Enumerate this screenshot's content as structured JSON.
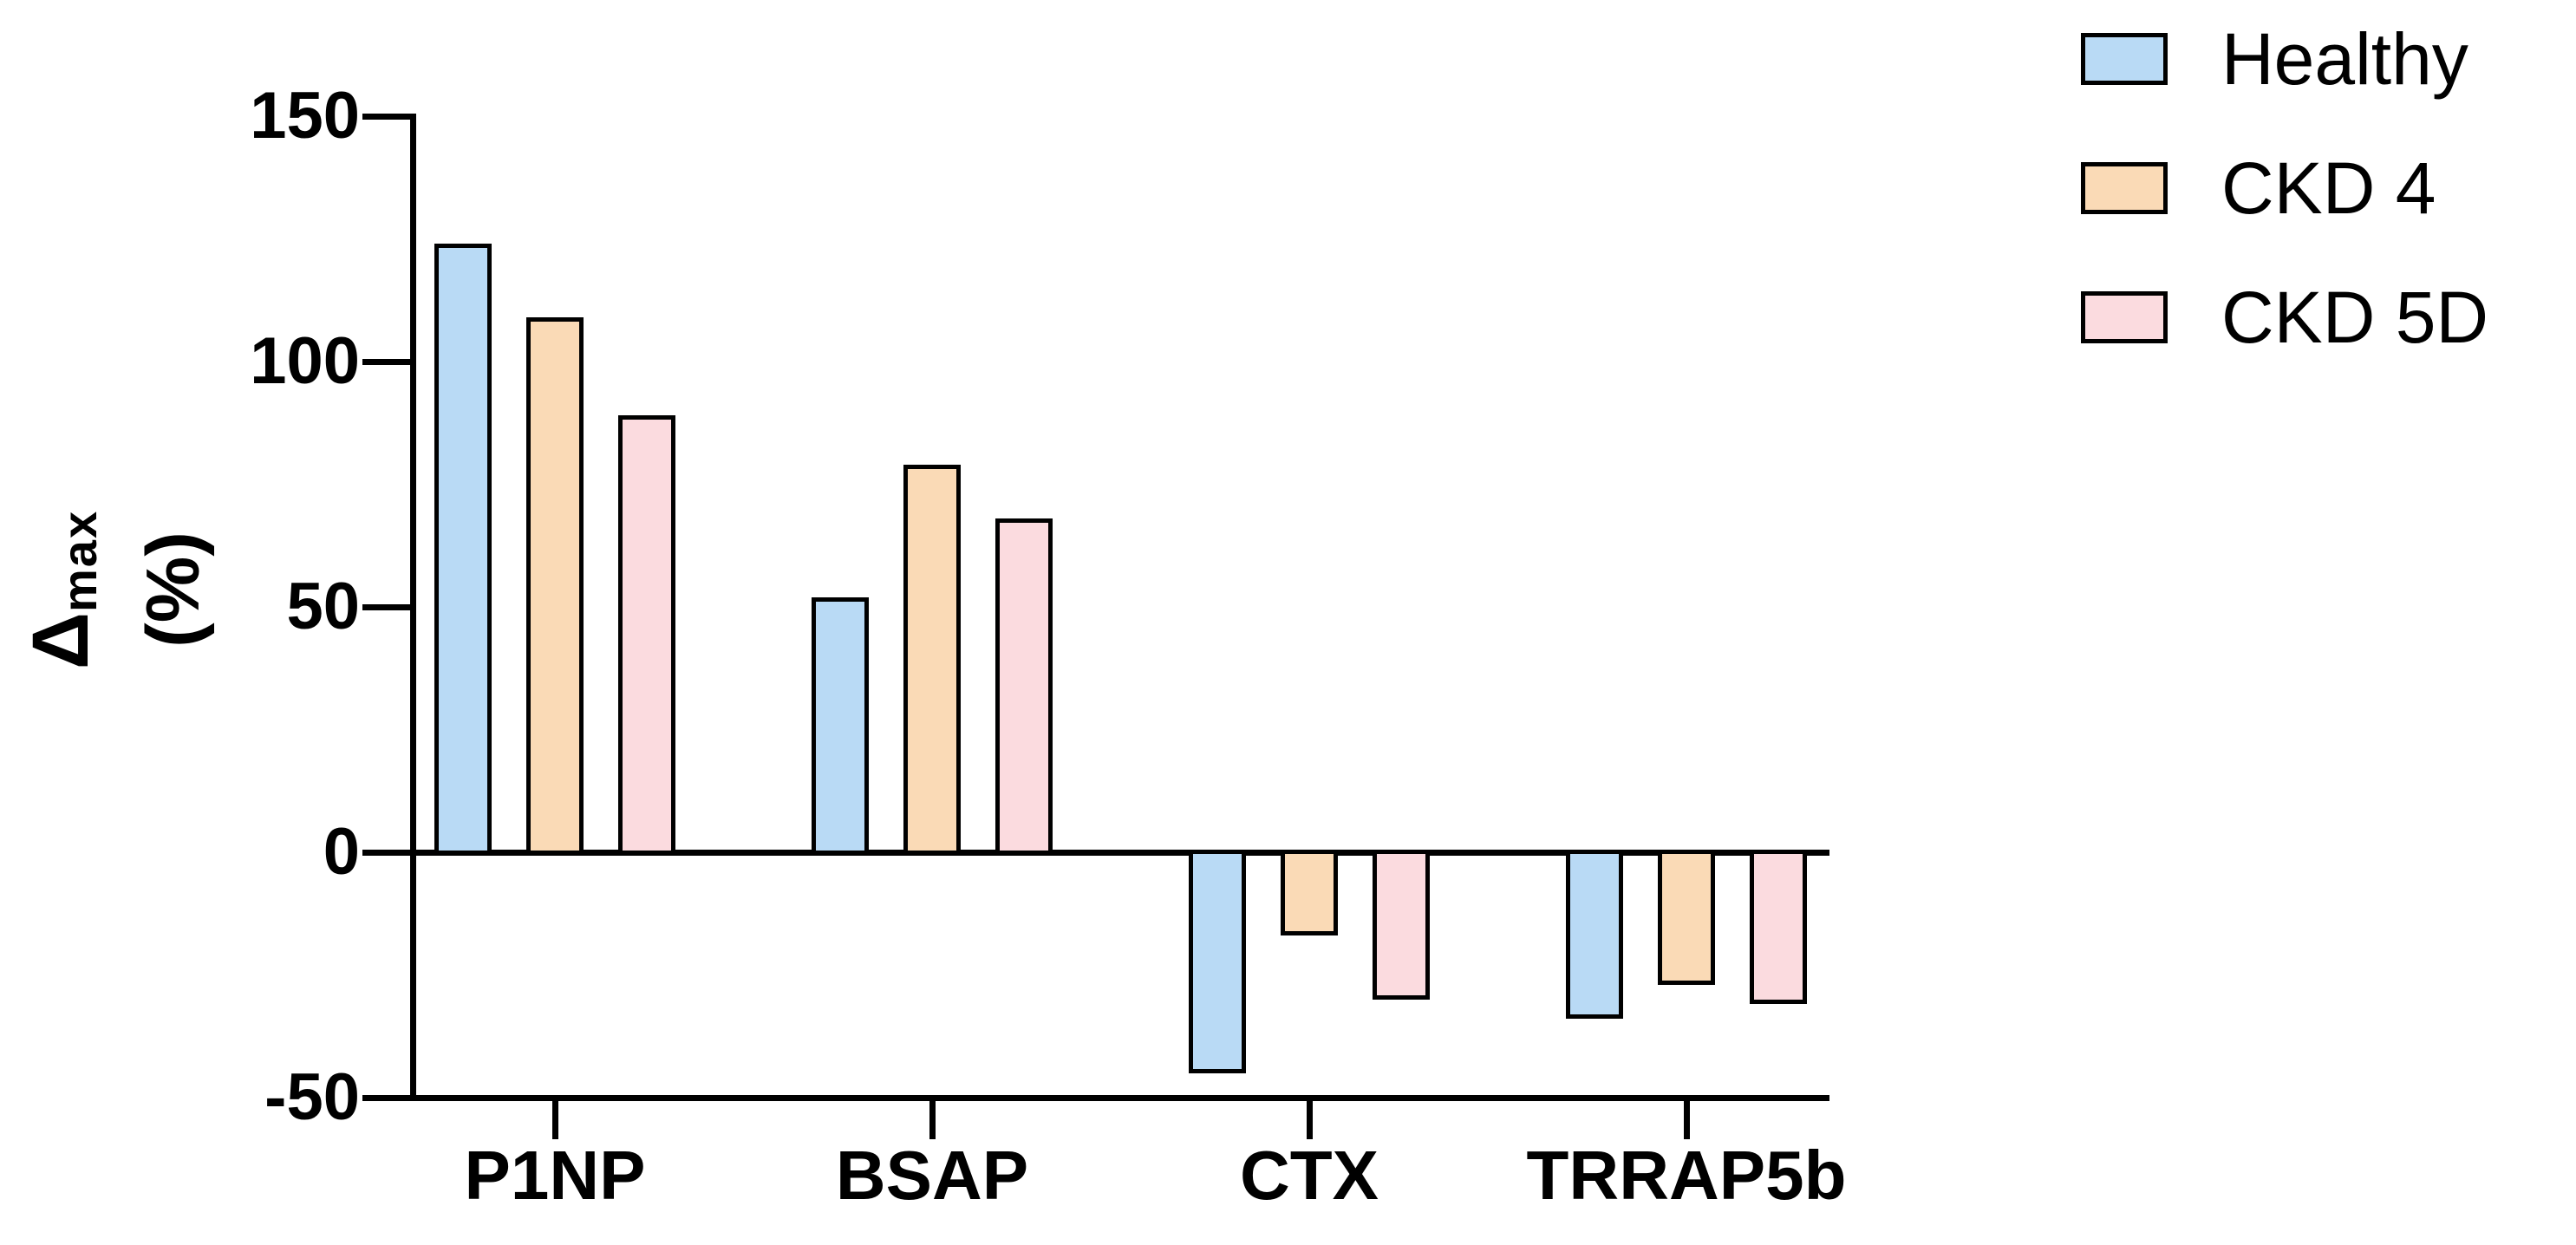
{
  "chart_data": {
    "type": "bar",
    "categories": [
      "P1NP",
      "BSAP",
      "CTX",
      "TRRAP5b"
    ],
    "series": [
      {
        "name": "Healthy",
        "color": "#B9DAF5",
        "values": [
          124,
          52,
          -45,
          -34
        ]
      },
      {
        "name": "CKD 4",
        "color": "#FADAB6",
        "values": [
          109,
          79,
          -17,
          -27
        ]
      },
      {
        "name": "CKD 5D",
        "color": "#FBDBDF",
        "values": [
          89,
          68,
          -30,
          -31
        ]
      }
    ],
    "ylabel": {
      "delta": "Δ",
      "delta_sub": "max",
      "unit": "(%)"
    },
    "yticks": [
      "150",
      "100",
      "50",
      "0",
      "-50"
    ],
    "ylim": [
      -50,
      150
    ],
    "grid": false,
    "legend_position": "top-right",
    "axis_color": "#000000",
    "bar_border_color": "#000000",
    "background_color": "#FFFFFF"
  }
}
